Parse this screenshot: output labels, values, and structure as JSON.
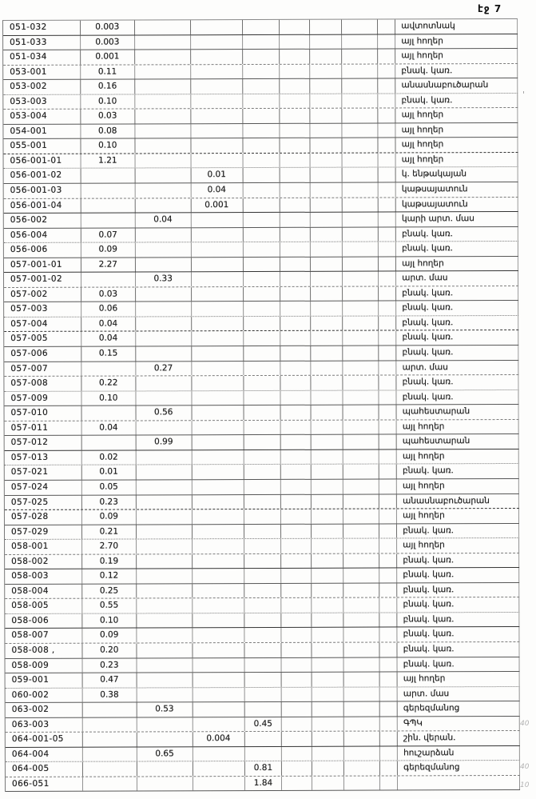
{
  "page": {
    "number_label": "էջ 7"
  },
  "table": {
    "rows": [
      {
        "code": "051-032",
        "v1": "0.003",
        "v2": "",
        "v3": "",
        "v4": "",
        "label": "ավտոտնակ"
      },
      {
        "code": "051-033",
        "v1": "0.003",
        "v2": "",
        "v3": "",
        "v4": "",
        "label": "այլ հողեր"
      },
      {
        "code": "051-034",
        "v1": "0.001",
        "v2": "",
        "v3": "",
        "v4": "",
        "label": "այլ հողեր"
      },
      {
        "code": "053-001",
        "v1": "0.11",
        "v2": "",
        "v3": "",
        "v4": "",
        "label": "բնակ. կառ."
      },
      {
        "code": "053-002",
        "v1": "0.16",
        "v2": "",
        "v3": "",
        "v4": "",
        "label": "անասնաբուծարան"
      },
      {
        "code": "053-003",
        "v1": "0.10",
        "v2": "",
        "v3": "",
        "v4": "",
        "label": "բնակ. կառ."
      },
      {
        "code": "053-004",
        "v1": "0.03",
        "v2": "",
        "v3": "",
        "v4": "",
        "label": "այլ հողեր"
      },
      {
        "code": "054-001",
        "v1": "0.08",
        "v2": "",
        "v3": "",
        "v4": "",
        "label": "այլ հողեր"
      },
      {
        "code": "055-001",
        "v1": "0.10",
        "v2": "",
        "v3": "",
        "v4": "",
        "label": "այլ հողեր"
      },
      {
        "code": "056-001-01",
        "v1": "1.21",
        "v2": "",
        "v3": "",
        "v4": "",
        "label": "այլ հողեր"
      },
      {
        "code": "056-001-02",
        "v1": "",
        "v2": "",
        "v3": "0.01",
        "v4": "",
        "label": "կ. ենթակայան"
      },
      {
        "code": "056-001-03",
        "v1": "",
        "v2": "",
        "v3": "0.04",
        "v4": "",
        "label": "կաթսայատուն"
      },
      {
        "code": "056-001-04",
        "v1": "",
        "v2": "",
        "v3": "0.001",
        "v4": "",
        "label": "կաթսայատուն"
      },
      {
        "code": "056-002",
        "v1": "",
        "v2": "0.04",
        "v3": "",
        "v4": "",
        "label": "կարի արտ. մաս"
      },
      {
        "code": "056-004",
        "v1": "0.07",
        "v2": "",
        "v3": "",
        "v4": "",
        "label": "բնակ. կառ."
      },
      {
        "code": "056-006",
        "v1": "0.09",
        "v2": "",
        "v3": "",
        "v4": "",
        "label": "բնակ. կառ."
      },
      {
        "code": "057-001-01",
        "v1": "2.27",
        "v2": "",
        "v3": "",
        "v4": "",
        "label": "այլ հողեր"
      },
      {
        "code": "057-001-02",
        "v1": "",
        "v2": "0.33",
        "v3": "",
        "v4": "",
        "label": "արտ. մաս"
      },
      {
        "code": "057-002",
        "v1": "0.03",
        "v2": "",
        "v3": "",
        "v4": "",
        "label": "բնակ. կառ."
      },
      {
        "code": "057-003",
        "v1": "0.06",
        "v2": "",
        "v3": "",
        "v4": "",
        "label": "բնակ. կառ."
      },
      {
        "code": "057-004",
        "v1": "0.04",
        "v2": "",
        "v3": "",
        "v4": "",
        "label": "բնակ. կառ."
      },
      {
        "code": "057-005",
        "v1": "0.04",
        "v2": "",
        "v3": "",
        "v4": "",
        "label": "բնակ. կառ."
      },
      {
        "code": "057-006",
        "v1": "0.15",
        "v2": "",
        "v3": "",
        "v4": "",
        "label": "բնակ. կառ."
      },
      {
        "code": "057-007",
        "v1": "",
        "v2": "0.27",
        "v3": "",
        "v4": "",
        "label": "արտ. մաս"
      },
      {
        "code": "057-008",
        "v1": "0.22",
        "v2": "",
        "v3": "",
        "v4": "",
        "label": "բնակ. կառ."
      },
      {
        "code": "057-009",
        "v1": "0.10",
        "v2": "",
        "v3": "",
        "v4": "",
        "label": "բնակ. կառ."
      },
      {
        "code": "057-010",
        "v1": "",
        "v2": "0.56",
        "v3": "",
        "v4": "",
        "label": "պահեստարան"
      },
      {
        "code": "057-011",
        "v1": "0.04",
        "v2": "",
        "v3": "",
        "v4": "",
        "label": "այլ հողեր"
      },
      {
        "code": "057-012",
        "v1": "",
        "v2": "0.99",
        "v3": "",
        "v4": "",
        "label": "պահեստարան"
      },
      {
        "code": "057-013",
        "v1": "0.02",
        "v2": "",
        "v3": "",
        "v4": "",
        "label": "այլ հողեր"
      },
      {
        "code": "057-021",
        "v1": "0.01",
        "v2": "",
        "v3": "",
        "v4": "",
        "label": "բնակ. կառ."
      },
      {
        "code": "057-024",
        "v1": "0.05",
        "v2": "",
        "v3": "",
        "v4": "",
        "label": "այլ հողեր"
      },
      {
        "code": "057-025",
        "v1": "0.23",
        "v2": "",
        "v3": "",
        "v4": "",
        "label": "անասնաբուծարան"
      },
      {
        "code": "057-028",
        "v1": "0.09",
        "v2": "",
        "v3": "",
        "v4": "",
        "label": "այլ հողեր"
      },
      {
        "code": "057-029",
        "v1": "0.21",
        "v2": "",
        "v3": "",
        "v4": "",
        "label": "բնակ. կառ."
      },
      {
        "code": "058-001",
        "v1": "2.70",
        "v2": "",
        "v3": "",
        "v4": "",
        "label": "այլ հողեր"
      },
      {
        "code": "058-002",
        "v1": "0.19",
        "v2": "",
        "v3": "",
        "v4": "",
        "label": "բնակ. կառ."
      },
      {
        "code": "058-003",
        "v1": "0.12",
        "v2": "",
        "v3": "",
        "v4": "",
        "label": "բնակ. կառ."
      },
      {
        "code": "058-004",
        "v1": "0.25",
        "v2": "",
        "v3": "",
        "v4": "",
        "label": "բնակ. կառ."
      },
      {
        "code": "058-005",
        "v1": "0.55",
        "v2": "",
        "v3": "",
        "v4": "",
        "label": "բնակ. կառ."
      },
      {
        "code": "058-006",
        "v1": "0.10",
        "v2": "",
        "v3": "",
        "v4": "",
        "label": "բնակ. կառ."
      },
      {
        "code": "058-007",
        "v1": "0.09",
        "v2": "",
        "v3": "",
        "v4": "",
        "label": "բնակ. կառ."
      },
      {
        "code": "058-008 ,",
        "v1": "0.20",
        "v2": "",
        "v3": "",
        "v4": "",
        "label": "բնակ. կառ."
      },
      {
        "code": "058-009",
        "v1": "0.23",
        "v2": "",
        "v3": "",
        "v4": "",
        "label": "բնակ. կառ."
      },
      {
        "code": "059-001",
        "v1": "0.47",
        "v2": "",
        "v3": "",
        "v4": "",
        "label": "այլ հողեր"
      },
      {
        "code": "060-002",
        "v1": "0.38",
        "v2": "",
        "v3": "",
        "v4": "",
        "label": "արտ. մաս"
      },
      {
        "code": "063-002",
        "v1": "",
        "v2": "0.53",
        "v3": "",
        "v4": "",
        "label": "գերեզմանոց"
      },
      {
        "code": "063-003",
        "v1": "",
        "v2": "",
        "v3": "",
        "v4": "0.45",
        "label": "ԳՊԿ"
      },
      {
        "code": "064-001-05",
        "v1": "",
        "v2": "",
        "v3": "0.004",
        "v4": "",
        "label": "շին. վերան."
      },
      {
        "code": "064-004",
        "v1": "",
        "v2": "0.65",
        "v3": "",
        "v4": "",
        "label": "հուշարձան"
      },
      {
        "code": "064-005",
        "v1": "",
        "v2": "",
        "v3": "",
        "v4": "0.81",
        "label": "գերեզմանոց"
      },
      {
        "code": "066-051",
        "v1": "",
        "v2": "",
        "v3": "",
        "v4": "1.84",
        "label": ""
      }
    ]
  },
  "margin_notes": [
    {
      "text": "40"
    },
    {
      "text": "40"
    },
    {
      "text": "10"
    }
  ],
  "stray_mark": "'"
}
